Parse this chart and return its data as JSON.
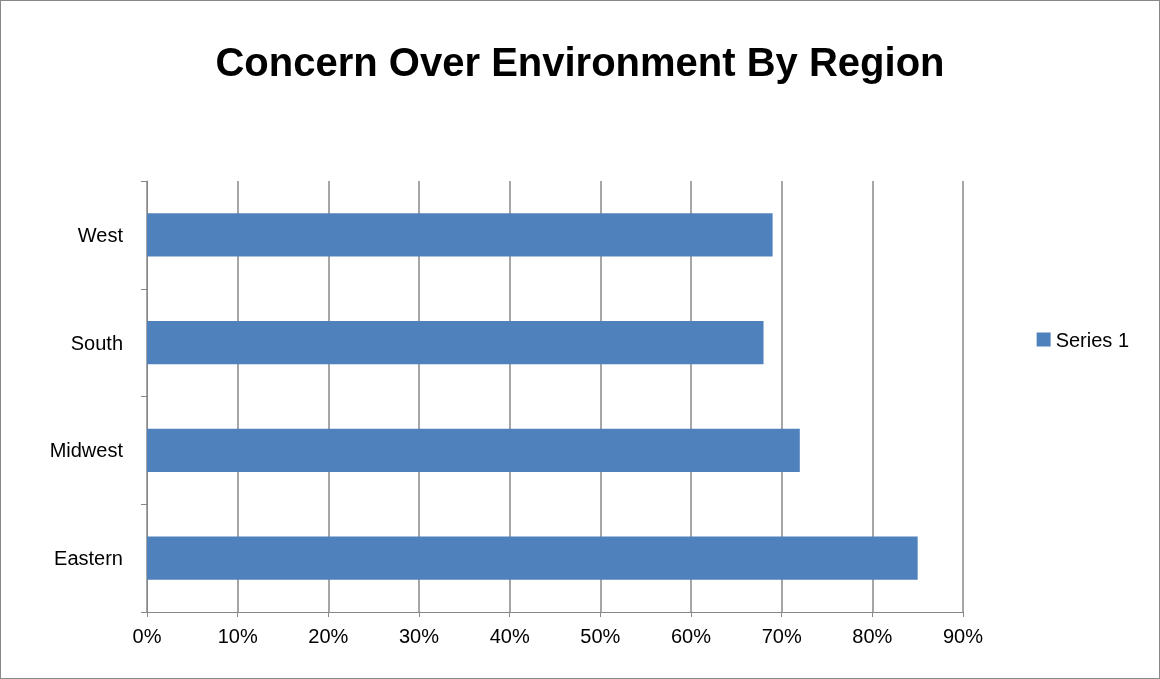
{
  "chart_data": {
    "type": "bar",
    "title": "Concern Over Environment By Region",
    "orientation": "horizontal",
    "categories": [
      "West",
      "South",
      "Midwest",
      "Eastern"
    ],
    "series": [
      {
        "name": "Series 1",
        "color": "#4f81bd",
        "values": [
          69,
          68,
          72,
          85
        ]
      }
    ],
    "xlim": [
      0,
      90
    ],
    "xticks": [
      {
        "value": 0,
        "label": "0%"
      },
      {
        "value": 10,
        "label": "10%"
      },
      {
        "value": 20,
        "label": "20%"
      },
      {
        "value": 30,
        "label": "30%"
      },
      {
        "value": 40,
        "label": "40%"
      },
      {
        "value": 50,
        "label": "50%"
      },
      {
        "value": 60,
        "label": "60%"
      },
      {
        "value": 70,
        "label": "70%"
      },
      {
        "value": 80,
        "label": "80%"
      },
      {
        "value": 90,
        "label": "90%"
      }
    ],
    "grid": "x",
    "legend": "right"
  }
}
